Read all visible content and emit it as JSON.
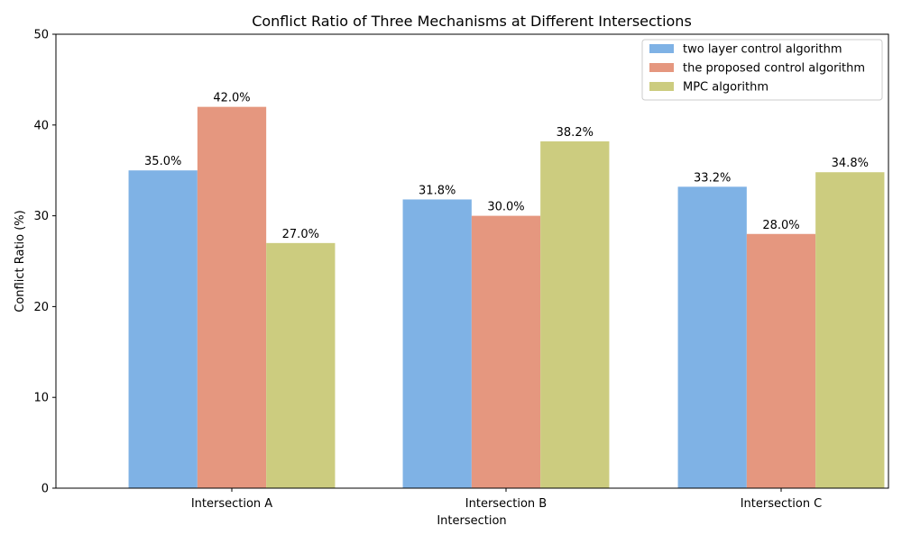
{
  "chart_data": {
    "type": "bar",
    "title": "Conflict Ratio of Three Mechanisms at Different Intersections",
    "xlabel": "Intersection",
    "ylabel": "Conflict Ratio (%)",
    "categories": [
      "Intersection A",
      "Intersection B",
      "Intersection C"
    ],
    "ylim": [
      0,
      50
    ],
    "yticks": [
      0,
      10,
      20,
      30,
      40,
      50
    ],
    "grid": false,
    "legend_position": "top-right",
    "series": [
      {
        "name": "two layer control algorithm",
        "color": "#7fb2e5",
        "values": [
          35.0,
          31.8,
          33.2
        ],
        "labels": [
          "35.0%",
          "31.8%",
          "33.2%"
        ]
      },
      {
        "name": "the proposed control algorithm",
        "color": "#e5977f",
        "values": [
          42.0,
          30.0,
          28.0
        ],
        "labels": [
          "42.0%",
          "30.0%",
          "28.0%"
        ]
      },
      {
        "name": "MPC algorithm",
        "color": "#cccc7f",
        "values": [
          27.0,
          38.2,
          34.8
        ],
        "labels": [
          "27.0%",
          "38.2%",
          "34.8%"
        ]
      }
    ]
  }
}
